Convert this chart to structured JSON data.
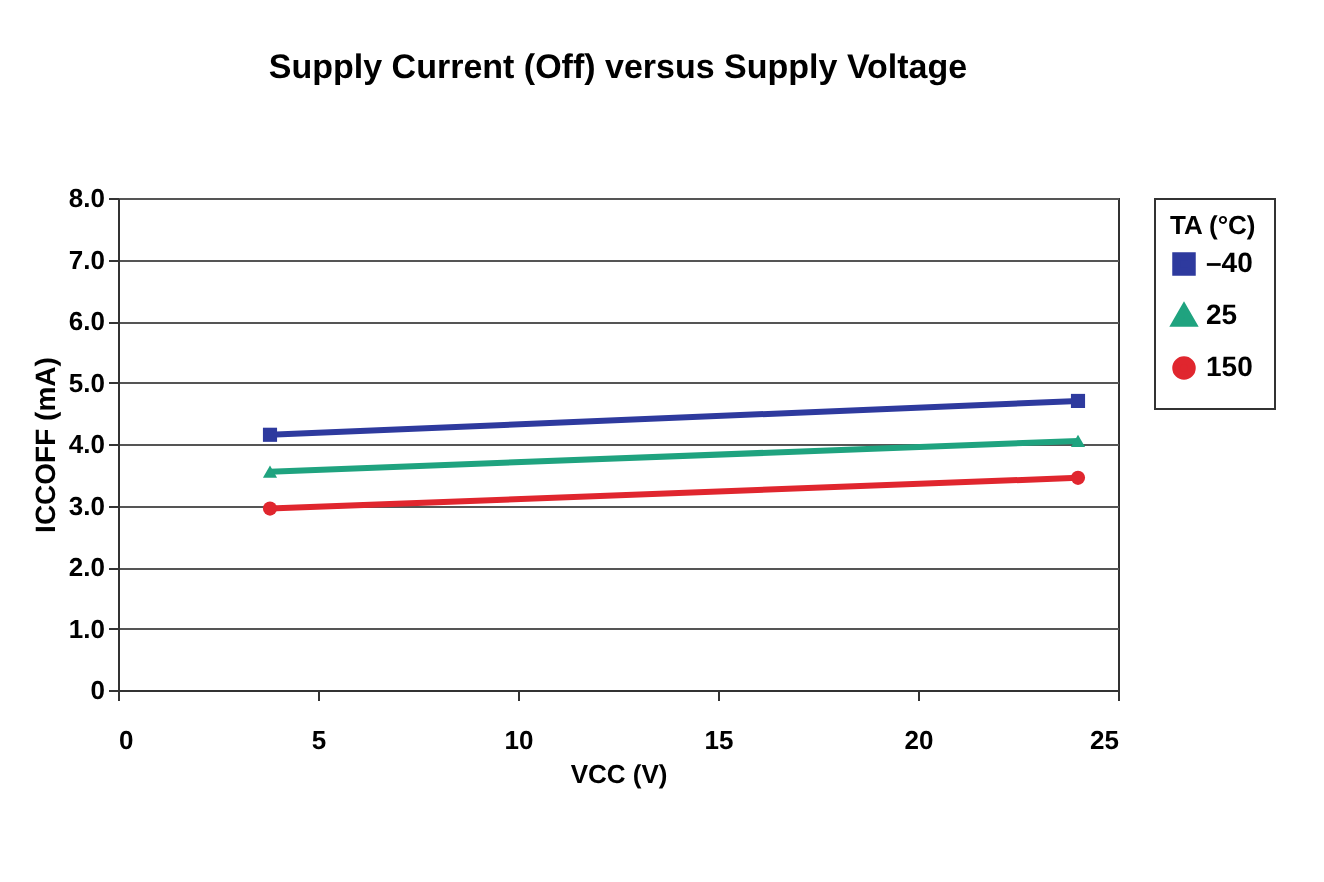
{
  "chart_data": {
    "type": "line",
    "title": "Supply Current (Off) versus Supply Voltage",
    "xlabel": "VCC (V)",
    "ylabel": "ICCOFF (mA)",
    "legend_title": "TA (°C)",
    "x": [
      3.8,
      24
    ],
    "series": [
      {
        "name": "–40",
        "color": "#2e3a9e",
        "values": [
          4.15,
          4.7
        ],
        "marker": "square"
      },
      {
        "name": "25",
        "color": "#1fa37f",
        "values": [
          3.55,
          4.05
        ],
        "marker": "triangle"
      },
      {
        "name": "150",
        "color": "#e0262e",
        "values": [
          2.95,
          3.45
        ],
        "marker": "circle"
      }
    ],
    "xlim": [
      0,
      25
    ],
    "xticks": [
      0,
      5,
      10,
      15,
      20,
      25
    ],
    "ylim": [
      0,
      8
    ],
    "yticks": [
      {
        "value": 0,
        "label": "0"
      },
      {
        "value": 1,
        "label": "1.0"
      },
      {
        "value": 2,
        "label": "2.0"
      },
      {
        "value": 3,
        "label": "3.0"
      },
      {
        "value": 4,
        "label": "4.0"
      },
      {
        "value": 5,
        "label": "5.0"
      },
      {
        "value": 6,
        "label": "6.0"
      },
      {
        "value": 7,
        "label": "7.0"
      },
      {
        "value": 8,
        "label": "8.0"
      }
    ],
    "grid": "y",
    "legend": "right",
    "line_style": "solid"
  }
}
